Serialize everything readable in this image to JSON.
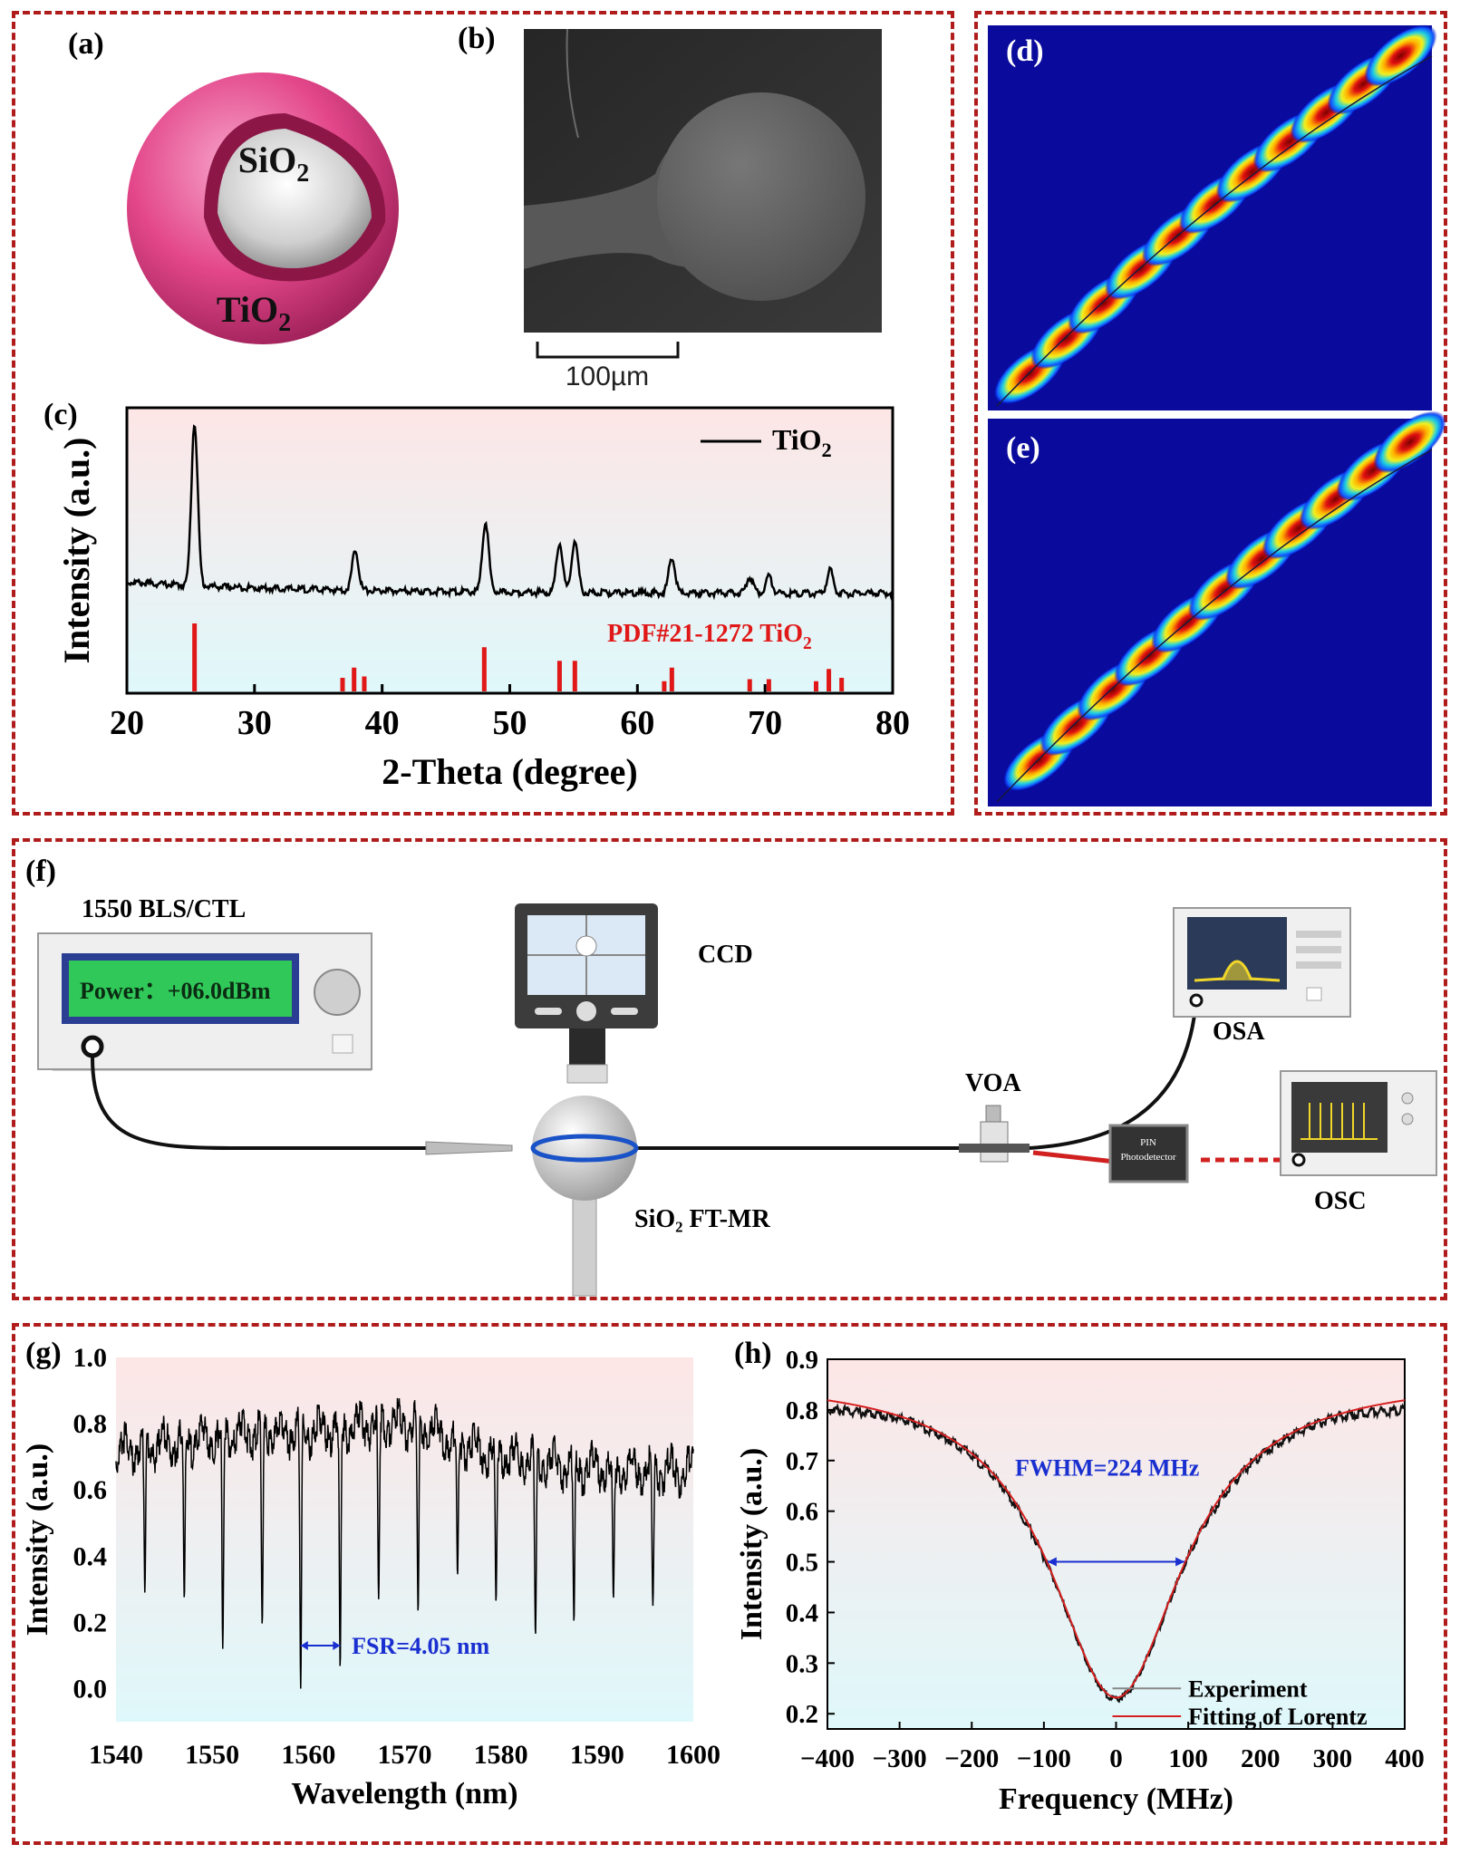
{
  "panels": {
    "a": {
      "label": "(a)",
      "core": "SiO",
      "shell": "TiO",
      "sub": "2"
    },
    "b": {
      "label": "(b)",
      "scale": "100µm"
    },
    "d": {
      "label": "(d)"
    },
    "e": {
      "label": "(e)"
    },
    "f": {
      "label": "(f)",
      "laser": "1550 BLS/CTL",
      "power": "Power：+06.0dBm",
      "ccd": "CCD",
      "osa": "OSA",
      "voa": "VOA",
      "osc": "OSC",
      "resonator": "SiO₂ FT-MR",
      "pin1": "PIN",
      "pin2": "Photodetector"
    }
  },
  "colors": {
    "frame": "#b01c1c",
    "ref_bar": "#e01818",
    "accent_blue": "#1a2fd0",
    "shell": "#e3478a"
  },
  "chart_data": [
    {
      "id": "c",
      "type": "line",
      "label": "(c)",
      "xlabel": "2-Theta (degree)",
      "ylabel": "Intensity (a.u.)",
      "xlim": [
        20,
        80
      ],
      "xticks": [
        20,
        30,
        40,
        50,
        60,
        70,
        80
      ],
      "series": [
        {
          "name": "TiO₂"
        }
      ],
      "peaks": [
        [
          25.3,
          1.0
        ],
        [
          37.9,
          0.25
        ],
        [
          48.1,
          0.43
        ],
        [
          53.9,
          0.3
        ],
        [
          55.1,
          0.32
        ],
        [
          62.7,
          0.22
        ],
        [
          68.8,
          0.1
        ],
        [
          70.3,
          0.1
        ],
        [
          75.1,
          0.14
        ]
      ],
      "reference": {
        "name": "PDF#21-1272 TiO₂",
        "bars": [
          [
            25.3,
            1.0
          ],
          [
            36.9,
            0.2
          ],
          [
            37.8,
            0.35
          ],
          [
            38.6,
            0.22
          ],
          [
            48.0,
            0.65
          ],
          [
            53.9,
            0.45
          ],
          [
            55.1,
            0.45
          ],
          [
            62.1,
            0.15
          ],
          [
            62.7,
            0.35
          ],
          [
            68.8,
            0.18
          ],
          [
            70.3,
            0.18
          ],
          [
            74.0,
            0.15
          ],
          [
            75.0,
            0.33
          ],
          [
            76.0,
            0.2
          ]
        ]
      }
    },
    {
      "id": "g",
      "type": "line",
      "label": "(g)",
      "xlabel": "Wavelength (nm)",
      "ylabel": "Intensity (a.u.)",
      "xlim": [
        1540,
        1600
      ],
      "ylim": [
        -0.1,
        1.0
      ],
      "xticks": [
        1540,
        1550,
        1560,
        1570,
        1580,
        1590,
        1600
      ],
      "yticks": [
        0.0,
        0.2,
        0.4,
        0.6,
        0.8,
        1.0
      ],
      "dips": [
        [
          1543.0,
          0.29
        ],
        [
          1547.1,
          0.27
        ],
        [
          1551.1,
          0.12
        ],
        [
          1555.2,
          0.19
        ],
        [
          1559.2,
          0.0
        ],
        [
          1563.3,
          0.06
        ],
        [
          1567.3,
          0.27
        ],
        [
          1571.4,
          0.23
        ],
        [
          1575.5,
          0.34
        ],
        [
          1579.5,
          0.26
        ],
        [
          1583.6,
          0.16
        ],
        [
          1587.6,
          0.2
        ],
        [
          1591.7,
          0.27
        ],
        [
          1595.8,
          0.25
        ]
      ],
      "annotation": "FSR=4.05 nm",
      "fsr_span": [
        1559.2,
        1563.3
      ]
    },
    {
      "id": "h",
      "type": "line",
      "label": "(h)",
      "xlabel": "Frequency (MHz)",
      "ylabel": "Intensity (a.u.)",
      "xlim": [
        -400,
        400
      ],
      "ylim": [
        0.17,
        0.9
      ],
      "xticks": [
        -400,
        -300,
        -200,
        -100,
        0,
        100,
        200,
        300,
        400
      ],
      "yticks": [
        0.2,
        0.3,
        0.4,
        0.5,
        0.6,
        0.7,
        0.8,
        0.9
      ],
      "series": [
        {
          "name": "Experiment"
        },
        {
          "name": "Fitting of  Lorentz"
        }
      ],
      "lorentz": {
        "baseline": 0.865,
        "depth": 0.633,
        "fwhm": 224
      },
      "annotation": "FWHM=224 MHz",
      "fwhm_span": [
        -95,
        95
      ],
      "fwhm_level": 0.5
    }
  ]
}
